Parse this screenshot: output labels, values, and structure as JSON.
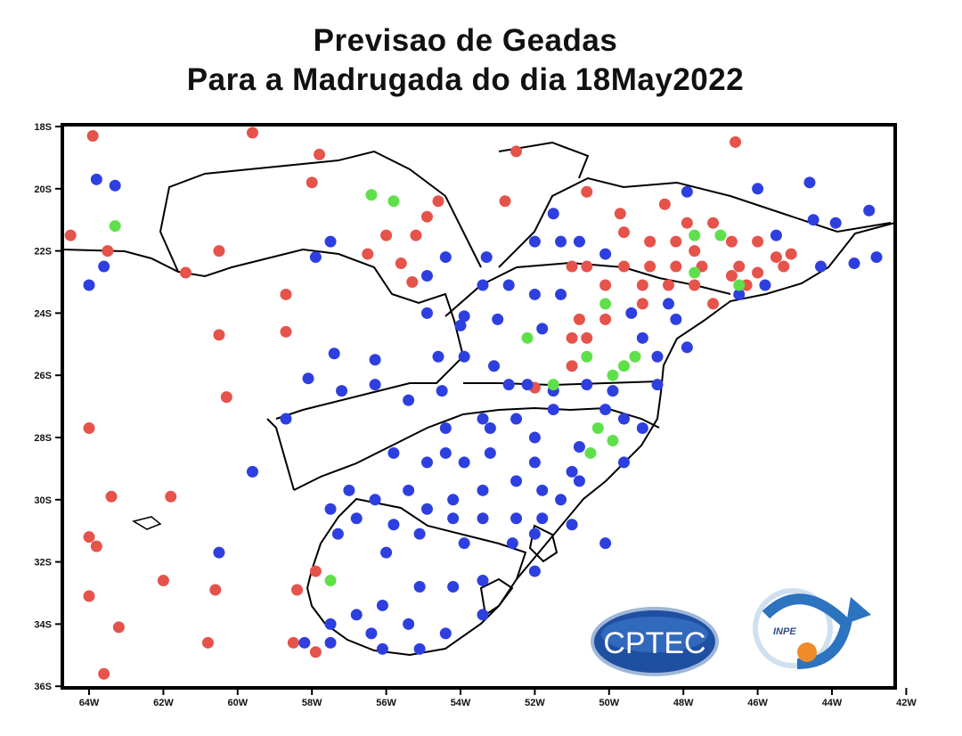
{
  "title": {
    "line1": "Previsao  de  Geadas",
    "line2": "Para a Madrugada do dia 18May2022"
  },
  "logos": {
    "cptec": "CPTEC",
    "inpe": "INPE"
  },
  "colors": {
    "frost": "#e5534b",
    "no_frost": "#2e3fe0",
    "weak_frost": "#5fe04a",
    "border": "#000000"
  },
  "chart_data": {
    "type": "scatter",
    "title": "Previsao de Geadas Para a Madrugada do dia 18May2022",
    "xlim": [
      -64.7,
      -42
    ],
    "ylim": [
      -36,
      -18
    ],
    "x_ticks": [
      "64W",
      "62W",
      "60W",
      "58W",
      "56W",
      "54W",
      "52W",
      "50W",
      "48W",
      "46W",
      "44W",
      "42W"
    ],
    "x_tick_values": [
      -64,
      -62,
      -60,
      -58,
      -56,
      -54,
      -52,
      -50,
      -48,
      -46,
      -44,
      -42
    ],
    "y_ticks": [
      "18S",
      "20S",
      "22S",
      "24S",
      "26S",
      "28S",
      "30S",
      "32S",
      "34S",
      "36S"
    ],
    "y_tick_values": [
      -18,
      -20,
      -22,
      -24,
      -26,
      -28,
      -30,
      -32,
      -34,
      -36
    ],
    "series": [
      {
        "name": "red",
        "color": "#e5534b",
        "points": [
          [
            -63.9,
            -18.3
          ],
          [
            -59.6,
            -18.2
          ],
          [
            -57.8,
            -18.9
          ],
          [
            -52.5,
            -18.8
          ],
          [
            -46.6,
            -18.5
          ],
          [
            -64.5,
            -21.5
          ],
          [
            -63.5,
            -22
          ],
          [
            -60.5,
            -22
          ],
          [
            -61.4,
            -22.7
          ],
          [
            -58.7,
            -23.4
          ],
          [
            -60.5,
            -24.7
          ],
          [
            -58.7,
            -24.6
          ],
          [
            -60.3,
            -26.7
          ],
          [
            -64,
            -27.7
          ],
          [
            -63.4,
            -29.9
          ],
          [
            -61.8,
            -29.9
          ],
          [
            -64,
            -31.2
          ],
          [
            -63.8,
            -31.5
          ],
          [
            -62,
            -32.6
          ],
          [
            -60.6,
            -32.9
          ],
          [
            -64,
            -33.1
          ],
          [
            -63.2,
            -34.1
          ],
          [
            -60.8,
            -34.6
          ],
          [
            -58.4,
            -32.9
          ],
          [
            -57.9,
            -32.3
          ],
          [
            -58.5,
            -34.6
          ],
          [
            -57.9,
            -34.9
          ],
          [
            -63.6,
            -35.6
          ],
          [
            -58,
            -19.8
          ],
          [
            -54.6,
            -20.4
          ],
          [
            -54.9,
            -20.9
          ],
          [
            -52.8,
            -20.4
          ],
          [
            -56,
            -21.5
          ],
          [
            -55.2,
            -21.5
          ],
          [
            -56.5,
            -22.1
          ],
          [
            -55.6,
            -22.4
          ],
          [
            -55.3,
            -23
          ],
          [
            -50.6,
            -20.1
          ],
          [
            -49.7,
            -20.8
          ],
          [
            -48.5,
            -20.5
          ],
          [
            -47.9,
            -21.1
          ],
          [
            -47.2,
            -21.1
          ],
          [
            -46.7,
            -21.7
          ],
          [
            -46,
            -21.7
          ],
          [
            -51,
            -22.5
          ],
          [
            -50.6,
            -22.5
          ],
          [
            -49.6,
            -22.5
          ],
          [
            -48.9,
            -22.5
          ],
          [
            -48.2,
            -22.5
          ],
          [
            -47.5,
            -22.5
          ],
          [
            -46.7,
            -22.8
          ],
          [
            -46,
            -22.7
          ],
          [
            -45.3,
            -22.5
          ],
          [
            -50.1,
            -23.1
          ],
          [
            -49.1,
            -23.1
          ],
          [
            -48.4,
            -23.1
          ],
          [
            -47.7,
            -23.1
          ],
          [
            -47.2,
            -23.7
          ],
          [
            -46.3,
            -23.1
          ],
          [
            -50.8,
            -24.2
          ],
          [
            -50.1,
            -24.2
          ],
          [
            -51,
            -24.8
          ],
          [
            -50.6,
            -24.8
          ],
          [
            -51,
            -25.7
          ],
          [
            -49.1,
            -23.7
          ],
          [
            -49.6,
            -21.4
          ],
          [
            -48.9,
            -21.7
          ],
          [
            -48.2,
            -21.7
          ],
          [
            -52,
            -26.4
          ],
          [
            -47.7,
            -22
          ],
          [
            -46.5,
            -22.5
          ],
          [
            -45.5,
            -22.2
          ],
          [
            -45.1,
            -22.1
          ]
        ]
      },
      {
        "name": "blue",
        "color": "#2e3fe0",
        "points": [
          [
            -63.8,
            -19.7
          ],
          [
            -63.3,
            -19.9
          ],
          [
            -63.6,
            -22.5
          ],
          [
            -64,
            -23.1
          ],
          [
            -57.5,
            -21.7
          ],
          [
            -57.9,
            -22.2
          ],
          [
            -54.9,
            -22.8
          ],
          [
            -54.4,
            -22.2
          ],
          [
            -53.3,
            -22.2
          ],
          [
            -52,
            -21.7
          ],
          [
            -51.5,
            -20.8
          ],
          [
            -51.3,
            -21.7
          ],
          [
            -50.8,
            -21.7
          ],
          [
            -50.1,
            -22.1
          ],
          [
            -51.3,
            -23.4
          ],
          [
            -53.4,
            -23.1
          ],
          [
            -52.7,
            -23.1
          ],
          [
            -52,
            -23.4
          ],
          [
            -51.8,
            -24.5
          ],
          [
            -53.9,
            -24.1
          ],
          [
            -54.9,
            -24
          ],
          [
            -54,
            -24.4
          ],
          [
            -53,
            -24.2
          ],
          [
            -57.4,
            -25.3
          ],
          [
            -58.1,
            -26.1
          ],
          [
            -57.2,
            -26.5
          ],
          [
            -56.3,
            -26.3
          ],
          [
            -56.3,
            -25.5
          ],
          [
            -55.4,
            -26.8
          ],
          [
            -54.6,
            -25.4
          ],
          [
            -54.5,
            -26.5
          ],
          [
            -53.9,
            -25.4
          ],
          [
            -53.1,
            -25.7
          ],
          [
            -52.7,
            -26.3
          ],
          [
            -52.2,
            -26.3
          ],
          [
            -51.5,
            -26.5
          ],
          [
            -50.6,
            -26.3
          ],
          [
            -49.9,
            -26.5
          ],
          [
            -48.7,
            -26.3
          ],
          [
            -48.7,
            -25.4
          ],
          [
            -49.1,
            -24.8
          ],
          [
            -48.2,
            -24.2
          ],
          [
            -47.9,
            -25.1
          ],
          [
            -58.7,
            -27.4
          ],
          [
            -59.6,
            -29.1
          ],
          [
            -60.5,
            -31.7
          ],
          [
            -53.4,
            -27.4
          ],
          [
            -54.4,
            -27.7
          ],
          [
            -53.2,
            -27.7
          ],
          [
            -52.5,
            -27.4
          ],
          [
            -51.5,
            -27.1
          ],
          [
            -50.1,
            -27.1
          ],
          [
            -49.6,
            -27.4
          ],
          [
            -49.1,
            -27.7
          ],
          [
            -52,
            -28
          ],
          [
            -50.8,
            -28.3
          ],
          [
            -54.4,
            -28.5
          ],
          [
            -55.8,
            -28.5
          ],
          [
            -54.9,
            -28.8
          ],
          [
            -53.9,
            -28.8
          ],
          [
            -53.2,
            -28.5
          ],
          [
            -52,
            -28.8
          ],
          [
            -51,
            -29.1
          ],
          [
            -49.6,
            -28.8
          ],
          [
            -57,
            -29.7
          ],
          [
            -56.3,
            -30
          ],
          [
            -55.4,
            -29.7
          ],
          [
            -54.9,
            -30.3
          ],
          [
            -54.2,
            -30
          ],
          [
            -53.4,
            -29.7
          ],
          [
            -52.5,
            -29.4
          ],
          [
            -51.8,
            -29.7
          ],
          [
            -51.3,
            -30
          ],
          [
            -50.8,
            -29.4
          ],
          [
            -57.5,
            -30.3
          ],
          [
            -56.8,
            -30.6
          ],
          [
            -55.8,
            -30.8
          ],
          [
            -54.2,
            -30.6
          ],
          [
            -53.4,
            -30.6
          ],
          [
            -52.5,
            -30.6
          ],
          [
            -51.8,
            -30.6
          ],
          [
            -51,
            -30.8
          ],
          [
            -50.1,
            -31.4
          ],
          [
            -52,
            -31.1
          ],
          [
            -52.6,
            -31.4
          ],
          [
            -53.9,
            -31.4
          ],
          [
            -55.1,
            -31.1
          ],
          [
            -56,
            -31.7
          ],
          [
            -57.3,
            -31.1
          ],
          [
            -52,
            -32.3
          ],
          [
            -53.4,
            -32.6
          ],
          [
            -54.2,
            -32.8
          ],
          [
            -55.1,
            -32.8
          ],
          [
            -56.1,
            -33.4
          ],
          [
            -56.8,
            -33.7
          ],
          [
            -57.5,
            -34
          ],
          [
            -56.4,
            -34.3
          ],
          [
            -55.4,
            -34
          ],
          [
            -54.4,
            -34.3
          ],
          [
            -53.4,
            -33.7
          ],
          [
            -58.2,
            -34.6
          ],
          [
            -57.5,
            -34.6
          ],
          [
            -56.1,
            -34.8
          ],
          [
            -55.1,
            -34.8
          ],
          [
            -46,
            -20
          ],
          [
            -44.6,
            -19.8
          ],
          [
            -43,
            -20.7
          ],
          [
            -43.9,
            -21.1
          ],
          [
            -44.5,
            -21
          ],
          [
            -45.5,
            -21.5
          ],
          [
            -43.4,
            -22.4
          ],
          [
            -42.8,
            -22.2
          ],
          [
            -44.3,
            -22.5
          ],
          [
            -45.8,
            -23.1
          ],
          [
            -46.5,
            -23.4
          ],
          [
            -48.4,
            -23.7
          ],
          [
            -49.4,
            -24
          ],
          [
            -47.9,
            -20.1
          ]
        ]
      },
      {
        "name": "green",
        "color": "#5fe04a",
        "points": [
          [
            -56.4,
            -20.2
          ],
          [
            -55.8,
            -20.4
          ],
          [
            -63.3,
            -21.2
          ],
          [
            -47.7,
            -21.5
          ],
          [
            -47,
            -21.5
          ],
          [
            -46.5,
            -23.1
          ],
          [
            -47.7,
            -22.7
          ],
          [
            -50.1,
            -23.7
          ],
          [
            -52.2,
            -24.8
          ],
          [
            -50.6,
            -25.4
          ],
          [
            -51.5,
            -26.3
          ],
          [
            -49.6,
            -25.7
          ],
          [
            -49.3,
            -25.4
          ],
          [
            -49.9,
            -26
          ],
          [
            -50.3,
            -27.7
          ],
          [
            -49.9,
            -28.1
          ],
          [
            -50.5,
            -28.5
          ],
          [
            -57.5,
            -32.6
          ]
        ]
      }
    ]
  }
}
